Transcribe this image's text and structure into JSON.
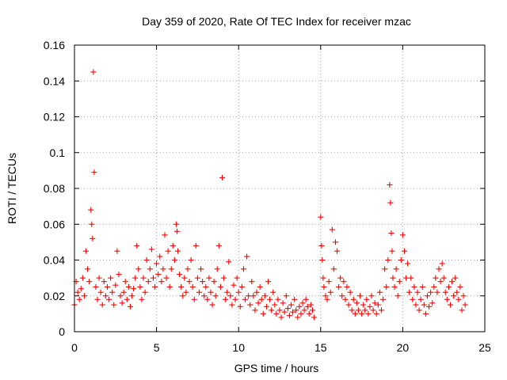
{
  "chart_data": {
    "type": "scatter",
    "title": "Day 359 of 2020, Rate Of TEC Index for receiver mzac",
    "xlabel": "GPS time / hours",
    "ylabel": "ROTI / TECUs",
    "xlim": [
      0,
      25
    ],
    "ylim": [
      0,
      0.16
    ],
    "xticks": [
      0,
      5,
      10,
      15,
      20,
      25
    ],
    "yticks": [
      0,
      0.02,
      0.04,
      0.06,
      0.08,
      0.1,
      0.12,
      0.14,
      0.16
    ],
    "xtick_labels": [
      "0",
      "5",
      "10",
      "15",
      "20",
      "25"
    ],
    "ytick_labels": [
      "0",
      "0.02",
      "0.04",
      "0.06",
      "0.08",
      "0.1",
      "0.12",
      "0.14",
      "0.16"
    ],
    "grid": true,
    "marker": "+",
    "marker_color": "#ff0000",
    "series": [
      {
        "name": "ROTI",
        "points": [
          [
            0.0,
            0.015
          ],
          [
            0.1,
            0.028
          ],
          [
            0.2,
            0.022
          ],
          [
            0.3,
            0.018
          ],
          [
            0.4,
            0.024
          ],
          [
            0.5,
            0.03
          ],
          [
            0.6,
            0.02
          ],
          [
            0.7,
            0.045
          ],
          [
            0.8,
            0.035
          ],
          [
            0.9,
            0.028
          ],
          [
            1.0,
            0.068
          ],
          [
            1.05,
            0.06
          ],
          [
            1.1,
            0.052
          ],
          [
            1.15,
            0.145
          ],
          [
            1.2,
            0.089
          ],
          [
            1.3,
            0.025
          ],
          [
            1.4,
            0.018
          ],
          [
            1.5,
            0.03
          ],
          [
            1.6,
            0.022
          ],
          [
            1.7,
            0.015
          ],
          [
            1.8,
            0.028
          ],
          [
            1.9,
            0.02
          ],
          [
            2.0,
            0.025
          ],
          [
            2.1,
            0.018
          ],
          [
            2.2,
            0.03
          ],
          [
            2.3,
            0.022
          ],
          [
            2.4,
            0.015
          ],
          [
            2.5,
            0.026
          ],
          [
            2.6,
            0.045
          ],
          [
            2.7,
            0.032
          ],
          [
            2.8,
            0.02
          ],
          [
            2.9,
            0.016
          ],
          [
            3.0,
            0.022
          ],
          [
            3.1,
            0.028
          ],
          [
            3.2,
            0.018
          ],
          [
            3.3,
            0.025
          ],
          [
            3.4,
            0.014
          ],
          [
            3.5,
            0.02
          ],
          [
            3.6,
            0.024
          ],
          [
            3.7,
            0.03
          ],
          [
            3.8,
            0.048
          ],
          [
            3.9,
            0.035
          ],
          [
            4.0,
            0.025
          ],
          [
            4.1,
            0.018
          ],
          [
            4.2,
            0.03
          ],
          [
            4.3,
            0.022
          ],
          [
            4.4,
            0.04
          ],
          [
            4.5,
            0.028
          ],
          [
            4.6,
            0.035
          ],
          [
            4.7,
            0.046
          ],
          [
            4.8,
            0.03
          ],
          [
            4.9,
            0.025
          ],
          [
            5.0,
            0.038
          ],
          [
            5.1,
            0.032
          ],
          [
            5.2,
            0.042
          ],
          [
            5.3,
            0.028
          ],
          [
            5.4,
            0.035
          ],
          [
            5.5,
            0.054
          ],
          [
            5.6,
            0.03
          ],
          [
            5.7,
            0.045
          ],
          [
            5.8,
            0.025
          ],
          [
            5.9,
            0.035
          ],
          [
            6.0,
            0.048
          ],
          [
            6.1,
            0.04
          ],
          [
            6.2,
            0.06
          ],
          [
            6.25,
            0.056
          ],
          [
            6.3,
            0.045
          ],
          [
            6.4,
            0.032
          ],
          [
            6.5,
            0.025
          ],
          [
            6.6,
            0.02
          ],
          [
            6.7,
            0.03
          ],
          [
            6.8,
            0.022
          ],
          [
            6.9,
            0.035
          ],
          [
            7.0,
            0.028
          ],
          [
            7.1,
            0.04
          ],
          [
            7.2,
            0.025
          ],
          [
            7.3,
            0.018
          ],
          [
            7.4,
            0.048
          ],
          [
            7.5,
            0.03
          ],
          [
            7.6,
            0.022
          ],
          [
            7.7,
            0.035
          ],
          [
            7.8,
            0.028
          ],
          [
            7.9,
            0.02
          ],
          [
            8.0,
            0.025
          ],
          [
            8.1,
            0.018
          ],
          [
            8.2,
            0.03
          ],
          [
            8.3,
            0.022
          ],
          [
            8.4,
            0.015
          ],
          [
            8.5,
            0.028
          ],
          [
            8.6,
            0.02
          ],
          [
            8.7,
            0.035
          ],
          [
            8.8,
            0.048
          ],
          [
            8.9,
            0.025
          ],
          [
            9.0,
            0.086
          ],
          [
            9.1,
            0.03
          ],
          [
            9.2,
            0.018
          ],
          [
            9.3,
            0.022
          ],
          [
            9.4,
            0.039
          ],
          [
            9.5,
            0.02
          ],
          [
            9.6,
            0.015
          ],
          [
            9.7,
            0.026
          ],
          [
            9.8,
            0.018
          ],
          [
            9.9,
            0.03
          ],
          [
            10.0,
            0.022
          ],
          [
            10.1,
            0.014
          ],
          [
            10.2,
            0.025
          ],
          [
            10.3,
            0.035
          ],
          [
            10.4,
            0.018
          ],
          [
            10.5,
            0.042
          ],
          [
            10.6,
            0.02
          ],
          [
            10.7,
            0.015
          ],
          [
            10.8,
            0.028
          ],
          [
            10.9,
            0.02
          ],
          [
            11.0,
            0.012
          ],
          [
            11.1,
            0.022
          ],
          [
            11.2,
            0.016
          ],
          [
            11.3,
            0.025
          ],
          [
            11.4,
            0.018
          ],
          [
            11.5,
            0.01
          ],
          [
            11.6,
            0.02
          ],
          [
            11.7,
            0.014
          ],
          [
            11.8,
            0.028
          ],
          [
            11.9,
            0.018
          ],
          [
            12.0,
            0.012
          ],
          [
            12.1,
            0.022
          ],
          [
            12.2,
            0.015
          ],
          [
            12.3,
            0.01
          ],
          [
            12.4,
            0.018
          ],
          [
            12.5,
            0.012
          ],
          [
            12.6,
            0.008
          ],
          [
            12.7,
            0.016
          ],
          [
            12.8,
            0.011
          ],
          [
            12.9,
            0.02
          ],
          [
            13.0,
            0.013
          ],
          [
            13.1,
            0.009
          ],
          [
            13.2,
            0.015
          ],
          [
            13.3,
            0.011
          ],
          [
            13.4,
            0.018
          ],
          [
            13.5,
            0.012
          ],
          [
            13.6,
            0.008
          ],
          [
            13.7,
            0.014
          ],
          [
            13.8,
            0.01
          ],
          [
            13.9,
            0.016
          ],
          [
            14.0,
            0.012
          ],
          [
            14.1,
            0.018
          ],
          [
            14.2,
            0.014
          ],
          [
            14.3,
            0.01
          ],
          [
            14.4,
            0.015
          ],
          [
            14.5,
            0.012
          ],
          [
            14.6,
            0.008
          ],
          [
            15.0,
            0.064
          ],
          [
            15.05,
            0.048
          ],
          [
            15.1,
            0.04
          ],
          [
            15.15,
            0.03
          ],
          [
            15.2,
            0.025
          ],
          [
            15.3,
            0.02
          ],
          [
            15.4,
            0.018
          ],
          [
            15.5,
            0.028
          ],
          [
            15.6,
            0.022
          ],
          [
            15.7,
            0.057
          ],
          [
            15.8,
            0.035
          ],
          [
            15.9,
            0.05
          ],
          [
            16.0,
            0.045
          ],
          [
            16.1,
            0.025
          ],
          [
            16.2,
            0.03
          ],
          [
            16.3,
            0.02
          ],
          [
            16.4,
            0.028
          ],
          [
            16.5,
            0.018
          ],
          [
            16.6,
            0.025
          ],
          [
            16.7,
            0.015
          ],
          [
            16.8,
            0.022
          ],
          [
            16.9,
            0.012
          ],
          [
            17.0,
            0.018
          ],
          [
            17.1,
            0.01
          ],
          [
            17.2,
            0.016
          ],
          [
            17.3,
            0.012
          ],
          [
            17.4,
            0.02
          ],
          [
            17.5,
            0.01
          ],
          [
            17.6,
            0.015
          ],
          [
            17.7,
            0.012
          ],
          [
            17.8,
            0.018
          ],
          [
            17.9,
            0.01
          ],
          [
            18.0,
            0.014
          ],
          [
            18.1,
            0.02
          ],
          [
            18.2,
            0.012
          ],
          [
            18.3,
            0.016
          ],
          [
            18.4,
            0.01
          ],
          [
            18.5,
            0.015
          ],
          [
            18.6,
            0.022
          ],
          [
            18.7,
            0.012
          ],
          [
            18.8,
            0.018
          ],
          [
            18.9,
            0.035
          ],
          [
            19.0,
            0.025
          ],
          [
            19.1,
            0.04
          ],
          [
            19.2,
            0.082
          ],
          [
            19.25,
            0.072
          ],
          [
            19.3,
            0.055
          ],
          [
            19.35,
            0.045
          ],
          [
            19.4,
            0.03
          ],
          [
            19.5,
            0.025
          ],
          [
            19.6,
            0.035
          ],
          [
            19.7,
            0.02
          ],
          [
            19.8,
            0.028
          ],
          [
            19.9,
            0.04
          ],
          [
            20.0,
            0.054
          ],
          [
            20.1,
            0.045
          ],
          [
            20.2,
            0.03
          ],
          [
            20.3,
            0.038
          ],
          [
            20.4,
            0.022
          ],
          [
            20.5,
            0.03
          ],
          [
            20.6,
            0.018
          ],
          [
            20.7,
            0.025
          ],
          [
            20.8,
            0.015
          ],
          [
            20.9,
            0.022
          ],
          [
            21.0,
            0.012
          ],
          [
            21.1,
            0.018
          ],
          [
            21.2,
            0.025
          ],
          [
            21.3,
            0.015
          ],
          [
            21.4,
            0.01
          ],
          [
            21.5,
            0.02
          ],
          [
            21.6,
            0.014
          ],
          [
            21.7,
            0.022
          ],
          [
            21.8,
            0.016
          ],
          [
            21.9,
            0.025
          ],
          [
            22.0,
            0.03
          ],
          [
            22.1,
            0.022
          ],
          [
            22.2,
            0.035
          ],
          [
            22.3,
            0.028
          ],
          [
            22.4,
            0.038
          ],
          [
            22.5,
            0.03
          ],
          [
            22.6,
            0.022
          ],
          [
            22.7,
            0.018
          ],
          [
            22.8,
            0.025
          ],
          [
            22.9,
            0.015
          ],
          [
            23.0,
            0.028
          ],
          [
            23.1,
            0.02
          ],
          [
            23.2,
            0.03
          ],
          [
            23.3,
            0.022
          ],
          [
            23.4,
            0.018
          ],
          [
            23.5,
            0.025
          ],
          [
            23.6,
            0.012
          ],
          [
            23.7,
            0.02
          ],
          [
            23.8,
            0.015
          ]
        ]
      }
    ]
  }
}
